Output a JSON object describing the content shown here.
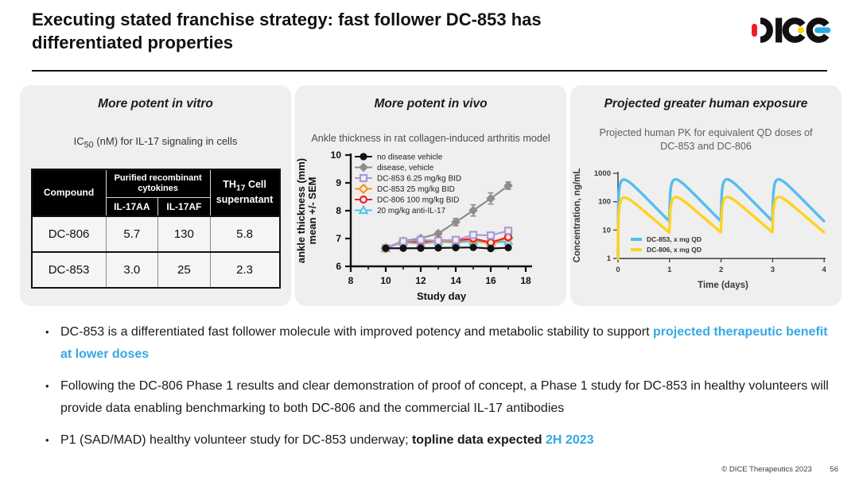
{
  "header": {
    "title_line1": "Executing stated franchise strategy: fast follower DC-853 has",
    "title_line2": "differentiated properties",
    "logo_text": "DICE"
  },
  "colors": {
    "accent_blue": "#35a8e6",
    "logo_red": "#ED1C24",
    "logo_yellow": "#FFD200",
    "logo_blue": "#29ABE2",
    "panel_bg": "#efefef",
    "table_header_bg": "#000000"
  },
  "panels": {
    "vitro": {
      "title": "More potent in vitro",
      "subtitle": {
        "pre": "IC",
        "sub": "50",
        "post": " (nM) for IL-17 signaling in cells"
      },
      "table": {
        "compound_header": "Compound",
        "group_header": "Purified recombinant cytokines",
        "sub_headers": [
          "IL-17AA",
          "IL-17AF"
        ],
        "th17_header": {
          "pre": "TH",
          "sub": "17",
          "post": " Cell supernatant"
        },
        "rows": [
          {
            "compound": "DC-806",
            "il17aa": "5.7",
            "il17af": "130",
            "th17": "5.8"
          },
          {
            "compound": "DC-853",
            "il17aa": "3.0",
            "il17af": "25",
            "th17": "2.3"
          }
        ]
      }
    },
    "vivo": {
      "title": "More potent in vivo",
      "subtitle": "Ankle thickness in rat collagen-induced arthritis model"
    },
    "pk": {
      "title": "Projected greater human exposure",
      "subtitle": "Projected human PK for equivalent QD doses of DC-853 and DC-806"
    }
  },
  "chart_data": [
    {
      "type": "table",
      "title": "IC50 (nM) for IL-17 signaling in cells",
      "columns": [
        "Compound",
        "IL-17AA",
        "IL-17AF",
        "TH17 Cell supernatant"
      ],
      "rows": [
        [
          "DC-806",
          5.7,
          130,
          5.8
        ],
        [
          "DC-853",
          3.0,
          25,
          2.3
        ]
      ]
    },
    {
      "type": "line",
      "title": "Ankle thickness in rat collagen-induced arthritis model",
      "xlabel": "Study day",
      "ylabel_line1": "ankle thickness (mm)",
      "ylabel_line2": "mean +/- SEM",
      "xlim": [
        8,
        18
      ],
      "ylim": [
        6,
        10
      ],
      "xticks": [
        8,
        10,
        12,
        14,
        16,
        18
      ],
      "xticks_minor": [
        9,
        11,
        13,
        15,
        17
      ],
      "yticks": [
        6,
        7,
        8,
        9,
        10
      ],
      "grid": false,
      "legend_position": "upper-left",
      "x": [
        10,
        11,
        12,
        13,
        14,
        15,
        16,
        17
      ],
      "series": [
        {
          "name": "no disease vehicle",
          "color": "#111111",
          "marker": "circle-filled",
          "values": [
            6.65,
            6.65,
            6.65,
            6.66,
            6.67,
            6.68,
            6.64,
            6.67
          ],
          "sem": [
            0.03,
            0.03,
            0.03,
            0.03,
            0.03,
            0.03,
            0.03,
            0.04
          ]
        },
        {
          "name": "disease, vehicle",
          "color": "#8d8d8d",
          "marker": "diamond-filled",
          "values": [
            6.66,
            6.91,
            7.01,
            7.18,
            7.59,
            8.01,
            8.44,
            8.9
          ],
          "sem": [
            0.04,
            0.05,
            0.06,
            0.08,
            0.13,
            0.2,
            0.2,
            0.13
          ]
        },
        {
          "name": "DC-853 6.25 mg/kg BID",
          "color": "#a89bd4",
          "marker": "square-open",
          "values": [
            6.65,
            6.9,
            6.95,
            6.92,
            6.95,
            7.13,
            7.11,
            7.28
          ],
          "sem": [
            0.03,
            0.04,
            0.04,
            0.04,
            0.05,
            0.06,
            0.05,
            0.09
          ]
        },
        {
          "name": "DC-853 25 mg/kg BID",
          "color": "#f7941d",
          "marker": "diamond-open",
          "values": [
            6.65,
            6.89,
            6.86,
            6.9,
            6.9,
            6.96,
            6.82,
            7.02
          ],
          "sem": [
            0.03,
            0.03,
            0.03,
            0.04,
            0.04,
            0.04,
            0.04,
            0.05
          ]
        },
        {
          "name": "DC-806 100 mg/kg BID",
          "color": "#ec2127",
          "marker": "circle-open",
          "values": [
            6.65,
            6.9,
            6.89,
            6.94,
            6.93,
            7.0,
            6.86,
            7.05
          ],
          "sem": [
            0.03,
            0.03,
            0.04,
            0.04,
            0.04,
            0.04,
            0.04,
            0.05
          ]
        },
        {
          "name": "20 mg/kg anti-IL-17",
          "color": "#4fc2f1",
          "marker": "triangle-open",
          "values": [
            6.65,
            6.87,
            6.81,
            6.88,
            6.86,
            6.9,
            6.84,
            6.9
          ],
          "sem": [
            0.03,
            0.03,
            0.03,
            0.03,
            0.03,
            0.03,
            0.03,
            0.04
          ]
        }
      ]
    },
    {
      "type": "line",
      "title": "Projected human PK for equivalent QD doses of DC-853 and DC-806",
      "xlabel": "Time (days)",
      "ylabel": "Concentration, ng/mL",
      "xlim": [
        0,
        4
      ],
      "ylim": [
        1,
        1000
      ],
      "y_scale": "log",
      "xticks": [
        0,
        1,
        2,
        3,
        4
      ],
      "yticks": [
        1,
        10,
        100,
        1000
      ],
      "grid": false,
      "legend_position": "lower-left",
      "series": [
        {
          "name": "DC-853, x mg QD",
          "color": "#56bdee",
          "peak": 600,
          "trough": 20,
          "dose_times_days": [
            0,
            1,
            2,
            3
          ]
        },
        {
          "name": "DC-806, x mg QD",
          "color": "#ffd21f",
          "peak": 140,
          "trough": 8,
          "dose_times_days": [
            0,
            1,
            2,
            3
          ]
        }
      ]
    }
  ],
  "bullets": {
    "bullet_char": "•",
    "items": [
      {
        "segments": [
          {
            "text": "DC-853 is a differentiated fast follower molecule with improved potency and metabolic stability to support ",
            "style": "normal"
          },
          {
            "text": "projected therapeutic benefit at lower doses",
            "style": "blue-bold"
          }
        ]
      },
      {
        "segments": [
          {
            "text": "Following the DC-806 Phase 1 results and clear demonstration of proof of concept, a Phase 1 study for DC-853 in healthy volunteers will provide data enabling benchmarking to both DC-806 and the commercial IL-17 antibodies",
            "style": "normal"
          }
        ]
      },
      {
        "segments": [
          {
            "text": "P1 (SAD/MAD) healthy volunteer study for DC-853 underway; ",
            "style": "normal"
          },
          {
            "text": "topline data expected ",
            "style": "bold"
          },
          {
            "text": "2H 2023",
            "style": "blue-bold"
          }
        ]
      }
    ]
  },
  "footer": {
    "copyright": "© DICE Therapeutics 2023",
    "page": "56"
  }
}
